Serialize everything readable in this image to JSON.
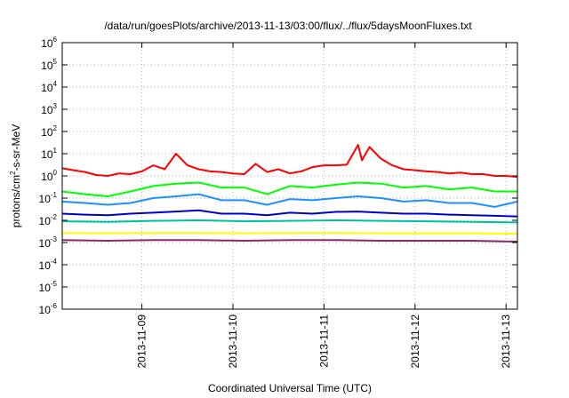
{
  "chart_data": {
    "type": "line",
    "title": "/data/run/goesPlots/archive/2013-11-13/03:00/flux/../flux/5daysMoonFluxes.txt",
    "xlabel": "Coordinated Universal Time (UTC)",
    "ylabel": {
      "base": "protons/cm",
      "sup": "2",
      "rest": "-s-sr-MeV"
    },
    "y_scale": "log",
    "ylim": [
      1e-06,
      1000000.0
    ],
    "y_ticks": [
      {
        "value": 1e-06,
        "base": "10",
        "exp": "-6"
      },
      {
        "value": 1e-05,
        "base": "10",
        "exp": "-5"
      },
      {
        "value": 0.0001,
        "base": "10",
        "exp": "-4"
      },
      {
        "value": 0.001,
        "base": "10",
        "exp": "-3"
      },
      {
        "value": 0.01,
        "base": "10",
        "exp": "-2"
      },
      {
        "value": 0.1,
        "base": "10",
        "exp": "-1"
      },
      {
        "value": 1,
        "base": "10",
        "exp": "0"
      },
      {
        "value": 10,
        "base": "10",
        "exp": "1"
      },
      {
        "value": 100,
        "base": "10",
        "exp": "2"
      },
      {
        "value": 1000.0,
        "base": "10",
        "exp": "3"
      },
      {
        "value": 10000.0,
        "base": "10",
        "exp": "4"
      },
      {
        "value": 100000.0,
        "base": "10",
        "exp": "5"
      },
      {
        "value": 1000000.0,
        "base": "10",
        "exp": "6"
      }
    ],
    "xlim": [
      "2013-11-08T03:00",
      "2013-11-13T03:00"
    ],
    "x_ticks": [
      "2013-11-09",
      "2013-11-10",
      "2013-11-11",
      "2013-11-12",
      "2013-11-13"
    ],
    "grid": true,
    "series": [
      {
        "color": "#ff0000",
        "x": [
          "2013-11-08T03:00",
          "2013-11-08T06:00",
          "2013-11-08T09:00",
          "2013-11-08T12:00",
          "2013-11-08T15:00",
          "2013-11-08T18:00",
          "2013-11-08T21:00",
          "2013-11-09T00:00",
          "2013-11-09T03:00",
          "2013-11-09T06:00",
          "2013-11-09T09:00",
          "2013-11-09T12:00",
          "2013-11-09T15:00",
          "2013-11-09T18:00",
          "2013-11-09T21:00",
          "2013-11-10T00:00",
          "2013-11-10T03:00",
          "2013-11-10T06:00",
          "2013-11-10T09:00",
          "2013-11-10T12:00",
          "2013-11-10T15:00",
          "2013-11-10T18:00",
          "2013-11-10T21:00",
          "2013-11-11T00:00",
          "2013-11-11T03:00",
          "2013-11-11T06:00",
          "2013-11-11T09:00",
          "2013-11-11T10:00",
          "2013-11-11T12:00",
          "2013-11-11T15:00",
          "2013-11-11T18:00",
          "2013-11-11T21:00",
          "2013-11-12T00:00",
          "2013-11-12T03:00",
          "2013-11-12T06:00",
          "2013-11-12T09:00",
          "2013-11-12T12:00",
          "2013-11-12T15:00",
          "2013-11-12T18:00",
          "2013-11-12T21:00",
          "2013-11-13T00:00",
          "2013-11-13T03:00"
        ],
        "values": [
          2.2,
          1.8,
          1.5,
          1.1,
          1.0,
          1.3,
          1.2,
          1.6,
          3.0,
          2.0,
          10,
          3.0,
          2.0,
          1.6,
          1.5,
          1.3,
          1.2,
          3.5,
          1.5,
          2.0,
          1.3,
          1.6,
          2.5,
          3.0,
          3.0,
          3.2,
          25,
          5,
          20,
          6,
          3.0,
          2.0,
          1.8,
          1.6,
          1.5,
          1.3,
          1.4,
          1.2,
          1.2,
          1.0,
          1.0,
          0.9
        ]
      },
      {
        "color": "#00ff00",
        "x": [
          "2013-11-08T03:00",
          "2013-11-08T09:00",
          "2013-11-08T15:00",
          "2013-11-08T21:00",
          "2013-11-09T03:00",
          "2013-11-09T09:00",
          "2013-11-09T15:00",
          "2013-11-09T21:00",
          "2013-11-10T03:00",
          "2013-11-10T09:00",
          "2013-11-10T15:00",
          "2013-11-10T21:00",
          "2013-11-11T03:00",
          "2013-11-11T09:00",
          "2013-11-11T15:00",
          "2013-11-11T21:00",
          "2013-11-12T03:00",
          "2013-11-12T09:00",
          "2013-11-12T15:00",
          "2013-11-12T21:00",
          "2013-11-13T03:00"
        ],
        "values": [
          0.2,
          0.15,
          0.12,
          0.2,
          0.35,
          0.45,
          0.5,
          0.3,
          0.3,
          0.15,
          0.35,
          0.3,
          0.4,
          0.5,
          0.45,
          0.3,
          0.35,
          0.25,
          0.3,
          0.2,
          0.2
        ]
      },
      {
        "color": "#1e90ff",
        "x": [
          "2013-11-08T03:00",
          "2013-11-08T09:00",
          "2013-11-08T15:00",
          "2013-11-08T21:00",
          "2013-11-09T03:00",
          "2013-11-09T09:00",
          "2013-11-09T15:00",
          "2013-11-09T21:00",
          "2013-11-10T03:00",
          "2013-11-10T09:00",
          "2013-11-10T15:00",
          "2013-11-10T21:00",
          "2013-11-11T03:00",
          "2013-11-11T09:00",
          "2013-11-11T15:00",
          "2013-11-11T21:00",
          "2013-11-12T03:00",
          "2013-11-12T09:00",
          "2013-11-12T15:00",
          "2013-11-12T21:00",
          "2013-11-13T03:00"
        ],
        "values": [
          0.07,
          0.06,
          0.05,
          0.06,
          0.1,
          0.12,
          0.15,
          0.08,
          0.08,
          0.05,
          0.09,
          0.08,
          0.1,
          0.12,
          0.1,
          0.07,
          0.08,
          0.06,
          0.06,
          0.04,
          0.07
        ]
      },
      {
        "color": "#0000cc",
        "x": [
          "2013-11-08T03:00",
          "2013-11-08T09:00",
          "2013-11-08T15:00",
          "2013-11-08T21:00",
          "2013-11-09T03:00",
          "2013-11-09T09:00",
          "2013-11-09T15:00",
          "2013-11-09T21:00",
          "2013-11-10T03:00",
          "2013-11-10T09:00",
          "2013-11-10T15:00",
          "2013-11-10T21:00",
          "2013-11-11T03:00",
          "2013-11-11T09:00",
          "2013-11-11T15:00",
          "2013-11-11T21:00",
          "2013-11-12T03:00",
          "2013-11-12T09:00",
          "2013-11-12T15:00",
          "2013-11-12T21:00",
          "2013-11-13T03:00"
        ],
        "values": [
          0.02,
          0.018,
          0.017,
          0.02,
          0.022,
          0.025,
          0.028,
          0.02,
          0.02,
          0.017,
          0.022,
          0.02,
          0.024,
          0.025,
          0.022,
          0.02,
          0.02,
          0.018,
          0.017,
          0.016,
          0.015
        ]
      },
      {
        "color": "#00c0a0",
        "x": [
          "2013-11-08T03:00",
          "2013-11-08T15:00",
          "2013-11-09T03:00",
          "2013-11-09T15:00",
          "2013-11-10T03:00",
          "2013-11-10T15:00",
          "2013-11-11T03:00",
          "2013-11-11T15:00",
          "2013-11-12T03:00",
          "2013-11-12T15:00",
          "2013-11-13T03:00"
        ],
        "values": [
          0.009,
          0.0085,
          0.0095,
          0.01,
          0.009,
          0.0095,
          0.01,
          0.0095,
          0.009,
          0.0085,
          0.008
        ]
      },
      {
        "color": "#ffff00",
        "x": [
          "2013-11-08T03:00",
          "2013-11-08T15:00",
          "2013-11-09T03:00",
          "2013-11-09T15:00",
          "2013-11-10T03:00",
          "2013-11-10T15:00",
          "2013-11-11T03:00",
          "2013-11-11T15:00",
          "2013-11-12T03:00",
          "2013-11-12T15:00",
          "2013-11-13T03:00"
        ],
        "values": [
          0.0027,
          0.0026,
          0.0027,
          0.0027,
          0.0026,
          0.0027,
          0.0027,
          0.0026,
          0.0026,
          0.0026,
          0.0025
        ]
      },
      {
        "color": "#8b2a6b",
        "x": [
          "2013-11-08T03:00",
          "2013-11-08T15:00",
          "2013-11-09T03:00",
          "2013-11-09T15:00",
          "2013-11-10T03:00",
          "2013-11-10T15:00",
          "2013-11-11T03:00",
          "2013-11-11T15:00",
          "2013-11-12T03:00",
          "2013-11-12T15:00",
          "2013-11-13T03:00"
        ],
        "values": [
          0.0013,
          0.0012,
          0.0013,
          0.0013,
          0.0012,
          0.0013,
          0.0013,
          0.0012,
          0.0012,
          0.0012,
          0.0011
        ]
      }
    ]
  }
}
